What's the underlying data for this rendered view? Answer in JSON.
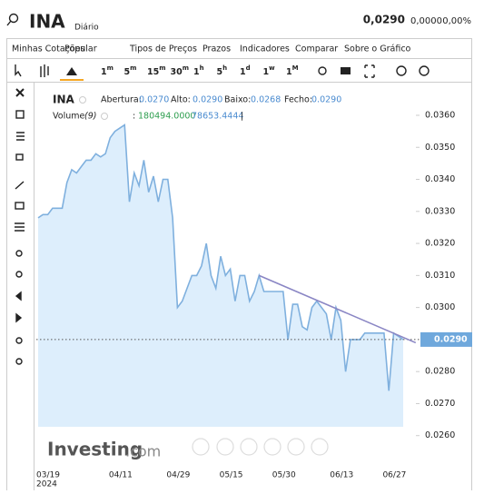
{
  "header": {
    "symbol": "INA",
    "period": "Diário",
    "price": "0,0290",
    "change": "0,0000",
    "change_pct": "0,00%"
  },
  "menu": [
    "Minhas Cotações",
    "Popular",
    "Tipos de Preços",
    "Prazos",
    "Indicadores",
    "Comparar",
    "Sobre o Gráfico"
  ],
  "toolbar": {
    "intervals": [
      {
        "n": "1",
        "u": "m"
      },
      {
        "n": "5",
        "u": "m"
      },
      {
        "n": "15",
        "u": "m"
      },
      {
        "n": "30",
        "u": "m"
      },
      {
        "n": "1",
        "u": "h"
      },
      {
        "n": "5",
        "u": "h"
      },
      {
        "n": "1",
        "u": "d"
      },
      {
        "n": "1",
        "u": "w"
      },
      {
        "n": "1",
        "u": "M"
      }
    ],
    "active": 6
  },
  "legend": {
    "symbol": "INA",
    "open_label": "Abertura:",
    "open": "0.0270",
    "high_label": "Alto:",
    "high": "0.0290",
    "low_label": "Baixo:",
    "low": "0.0268",
    "close_label": "Fecho:",
    "close": "0.0290",
    "volume_label": "Volume",
    "volume_period": "(9)",
    "colon": ":",
    "volume_value": "180494.0000",
    "volume_avg": "78653.4444",
    "bar": "|"
  },
  "watermark": {
    "brand": "Investing",
    "domain": ".com"
  },
  "chart_data": {
    "type": "area",
    "color": "#7fb0de",
    "fill": "#ddeefc",
    "categories": [
      "03/19",
      null,
      null,
      null,
      null,
      null,
      null,
      null,
      null,
      null,
      null,
      null,
      null,
      null,
      null,
      null,
      null,
      "04/11",
      null,
      null,
      null,
      null,
      null,
      null,
      null,
      null,
      null,
      null,
      null,
      "04/29",
      null,
      null,
      null,
      null,
      null,
      null,
      null,
      null,
      null,
      null,
      "05/15",
      null,
      null,
      null,
      null,
      null,
      null,
      null,
      null,
      null,
      null,
      "05/30",
      null,
      null,
      null,
      null,
      null,
      null,
      null,
      null,
      null,
      null,
      null,
      "06/13",
      null,
      null,
      null,
      null,
      null,
      null,
      null,
      null,
      null,
      null,
      "06/27",
      null,
      null
    ],
    "year": "2024",
    "values": [
      0.0328,
      0.0329,
      0.0329,
      0.0331,
      0.0331,
      0.0331,
      0.0339,
      0.0343,
      0.0342,
      0.0344,
      0.0346,
      0.0346,
      0.0348,
      0.0347,
      0.0348,
      0.0353,
      0.0355,
      0.0356,
      0.0357,
      0.0333,
      0.0342,
      0.0338,
      0.0346,
      0.0336,
      0.0341,
      0.0333,
      0.034,
      0.034,
      0.0328,
      0.03,
      0.0302,
      0.0306,
      0.031,
      0.031,
      0.0313,
      0.032,
      0.031,
      0.0306,
      0.0316,
      0.031,
      0.0312,
      0.0302,
      0.031,
      0.031,
      0.0302,
      0.0305,
      0.031,
      0.0305,
      0.0305,
      0.0305,
      0.0305,
      0.0305,
      0.029,
      0.0301,
      0.0301,
      0.0294,
      0.0293,
      0.03,
      0.0302,
      0.03,
      0.0298,
      0.029,
      0.03,
      0.0296,
      0.028,
      0.029,
      0.029,
      0.029,
      0.0292,
      0.0292,
      0.0292,
      0.0292,
      0.0292,
      0.0274,
      0.0292,
      0.0291,
      0.029
    ],
    "ylim": [
      0.025,
      0.037
    ],
    "yticks": [
      {
        "value": 0.026,
        "label": "0.0260"
      },
      {
        "value": 0.027,
        "label": "0.0270"
      },
      {
        "value": 0.028,
        "label": "0.0280"
      },
      {
        "value": 0.03,
        "label": "0.0300"
      },
      {
        "value": 0.031,
        "label": "0.0310"
      },
      {
        "value": 0.032,
        "label": "0.0320"
      },
      {
        "value": 0.033,
        "label": "0.0330"
      },
      {
        "value": 0.034,
        "label": "0.0340"
      },
      {
        "value": 0.035,
        "label": "0.0350"
      },
      {
        "value": 0.036,
        "label": "0.0360"
      }
    ],
    "last": {
      "value": 0.029,
      "label": "0.0290"
    },
    "trendline": {
      "x": [
        46,
        78.6
      ],
      "y": [
        0.031,
        0.0289
      ],
      "color": "#8a86c4"
    }
  }
}
